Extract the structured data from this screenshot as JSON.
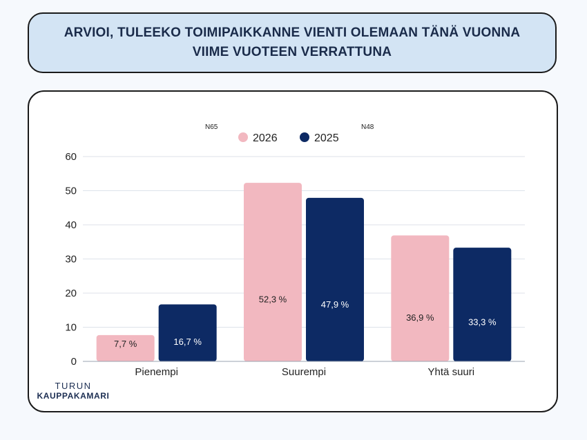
{
  "title": "ARVIOI, TULEEKO TOIMIPAIKKANNE VIENTI OLEMAAN TÄNÄ VUONNA VIIME VUOTEEN VERRATTUNA",
  "logo": {
    "line1": "TURUN",
    "line2": "KAUPPAKAMARI"
  },
  "notes": {
    "n2026": "N65",
    "n2025": "N48"
  },
  "colors": {
    "s2026": "#f2b8c0",
    "s2025": "#0d2a64",
    "grid": "#dde2ea",
    "text": "#222222"
  },
  "chart_data": {
    "type": "bar",
    "categories": [
      "Pienempi",
      "Suurempi",
      "Yhtä suuri"
    ],
    "series": [
      {
        "name": "2026",
        "values": [
          7.7,
          52.3,
          36.9
        ],
        "labels": [
          "7,7 %",
          "52,3 %",
          "36,9 %"
        ]
      },
      {
        "name": "2025",
        "values": [
          16.7,
          47.9,
          33.3
        ],
        "labels": [
          "16,7 %",
          "47,9 %",
          "33,3 %"
        ]
      }
    ],
    "ylim": [
      0,
      60
    ],
    "yticks": [
      0,
      10,
      20,
      30,
      40,
      50,
      60
    ],
    "grid": true,
    "legend": "top-center"
  }
}
